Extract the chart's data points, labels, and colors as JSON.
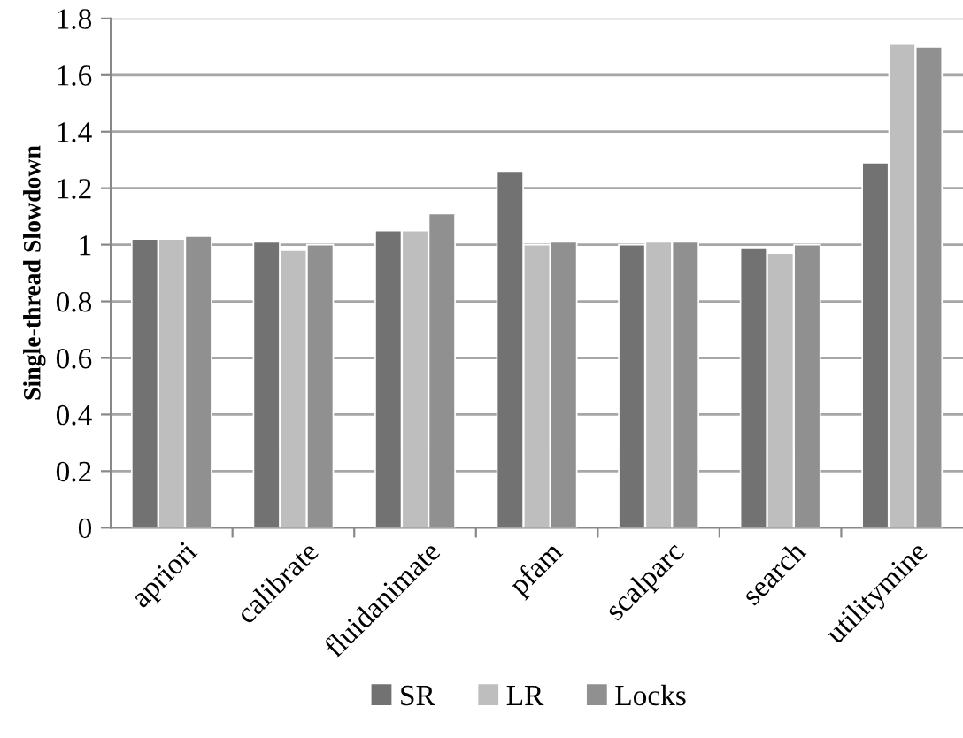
{
  "chart_data": {
    "type": "bar",
    "ylabel": "Single-thread Slowdown",
    "categories": [
      "apriori",
      "calibrate",
      "fluidanimate",
      "pfam",
      "scalparc",
      "search",
      "utilitymine"
    ],
    "series": [
      {
        "name": "SR",
        "color": "#727272",
        "values": [
          1.02,
          1.01,
          1.05,
          1.26,
          1.0,
          0.99,
          1.29
        ]
      },
      {
        "name": "LR",
        "color": "#bebebe",
        "values": [
          1.02,
          0.98,
          1.05,
          1.0,
          1.01,
          0.97,
          1.71
        ]
      },
      {
        "name": "Locks",
        "color": "#909090",
        "values": [
          1.03,
          1.0,
          1.11,
          1.01,
          1.01,
          1.0,
          1.7
        ]
      }
    ],
    "ylim": [
      0,
      1.8
    ],
    "yticks": [
      0,
      0.2,
      0.4,
      0.6,
      0.8,
      1,
      1.2,
      1.4,
      1.6,
      1.8
    ],
    "grid": "y",
    "legend": "bottom"
  }
}
